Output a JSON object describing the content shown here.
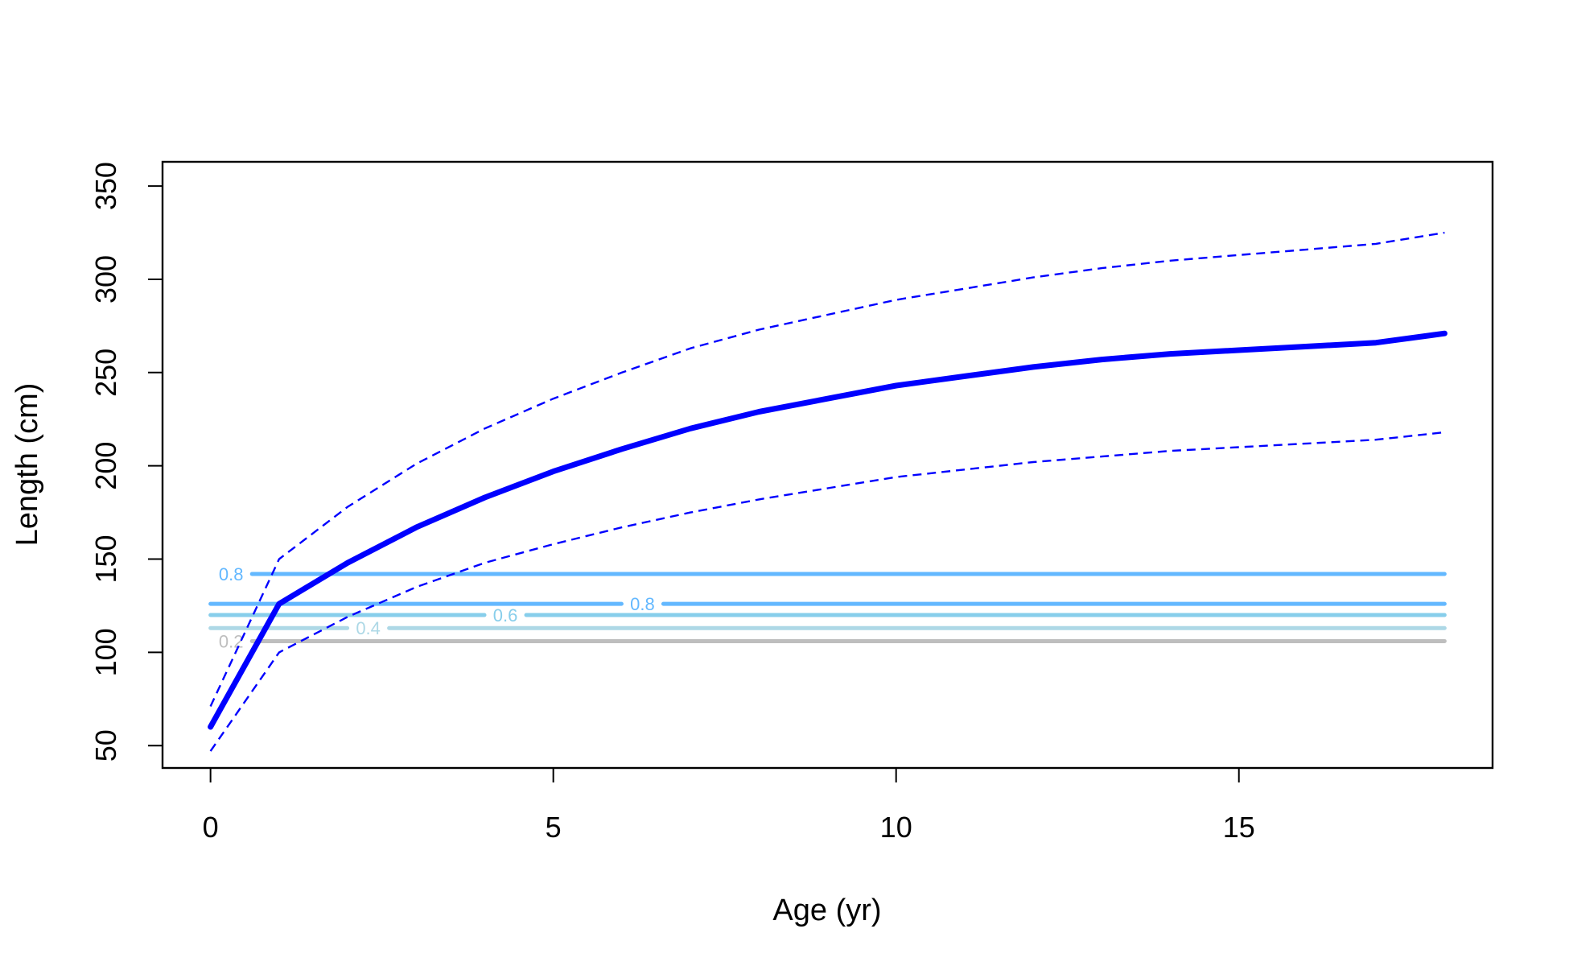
{
  "chart_data": {
    "type": "line",
    "title": "",
    "xlabel": "Age (yr)",
    "ylabel": "Length (cm)",
    "xlim": [
      -0.7,
      18.7
    ],
    "ylim": [
      38,
      363
    ],
    "x_ticks": [
      0,
      5,
      10,
      15
    ],
    "y_ticks": [
      50,
      100,
      150,
      200,
      250,
      300,
      350
    ],
    "grid": false,
    "legend": "none",
    "series": [
      {
        "role": "mean",
        "color": "#0000FF",
        "style": "solid-thick",
        "x": [
          0,
          1,
          2,
          3,
          4,
          5,
          6,
          7,
          8,
          9,
          10,
          11,
          12,
          13,
          14,
          15,
          16,
          17,
          18
        ],
        "values": [
          60,
          126,
          148,
          167,
          183,
          197,
          209,
          220,
          229,
          236,
          243,
          248,
          253,
          257,
          260,
          262,
          264,
          266,
          271
        ]
      },
      {
        "role": "upper",
        "color": "#0000FF",
        "style": "dashed",
        "x": [
          0,
          1,
          2,
          3,
          4,
          5,
          6,
          7,
          8,
          9,
          10,
          11,
          12,
          13,
          14,
          15,
          16,
          17,
          18
        ],
        "values": [
          71,
          150,
          178,
          201,
          220,
          236,
          250,
          263,
          273,
          281,
          289,
          295,
          301,
          306,
          310,
          313,
          316,
          319,
          325
        ]
      },
      {
        "role": "lower",
        "color": "#0000FF",
        "style": "dashed",
        "x": [
          0,
          1,
          2,
          3,
          4,
          5,
          6,
          7,
          8,
          9,
          10,
          11,
          12,
          13,
          14,
          15,
          16,
          17,
          18
        ],
        "values": [
          47,
          100,
          119,
          135,
          148,
          158,
          167,
          175,
          182,
          188,
          194,
          198,
          202,
          205,
          208,
          210,
          212,
          214,
          218
        ]
      }
    ],
    "contours": [
      {
        "label": "0.2",
        "y": 106,
        "color": "#BEBEBE",
        "x_start": 0,
        "x_end": 18,
        "label_x": 0.3
      },
      {
        "label": "0.4",
        "y": 113,
        "color": "#ADD8E6",
        "x_start": 0,
        "x_end": 18,
        "label_x": 2.3
      },
      {
        "label": "0.6",
        "y": 120,
        "color": "#87CEEB",
        "x_start": 0,
        "x_end": 18,
        "label_x": 4.3
      },
      {
        "label": "0.8",
        "y": 126,
        "color": "#63B8FF",
        "x_start": 0,
        "x_end": 18,
        "label_x": 6.3
      },
      {
        "label": "0.8",
        "y": 142,
        "color": "#63B8FF",
        "x_start": 0.6,
        "x_end": 18,
        "label_x": 0.3
      }
    ]
  }
}
